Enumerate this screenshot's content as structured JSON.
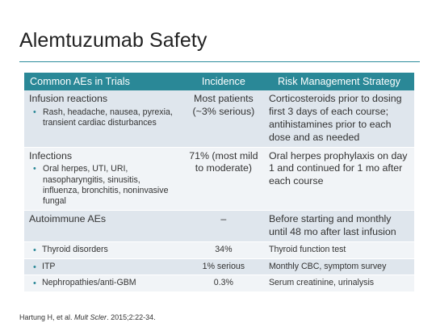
{
  "title": "Alemtuzumab Safety",
  "table": {
    "headers": [
      "Common AEs in Trials",
      "Incidence",
      "Risk Management Strategy"
    ],
    "rows": [
      {
        "ae": "Infusion reactions",
        "sub": "Rash, headache, nausea, pyrexia, transient cardiac disturbances",
        "incidence": "Most patients (~3% serious)",
        "strategy": "Corticosteroids prior to dosing first 3 days of each course; antihistamines prior to each dose and as needed"
      },
      {
        "ae": "Infections",
        "sub": "Oral herpes, UTI, URI, nasopharyngitis, sinusitis, influenza, bronchitis, noninvasive fungal",
        "incidence": "71% (most mild to moderate)",
        "strategy": "Oral herpes prophylaxis on day 1 and continued for 1 mo after each course"
      },
      {
        "ae": "Autoimmune AEs",
        "incidence": "–",
        "strategy": "Before starting and monthly until 48 mo after last infusion"
      },
      {
        "ae": "Thyroid disorders",
        "incidence": "34%",
        "strategy": "Thyroid function test"
      },
      {
        "ae": "ITP",
        "incidence": "1% serious",
        "strategy": "Monthly CBC, symptom survey"
      },
      {
        "ae": "Nephropathies/anti-GBM",
        "incidence": "0.3%",
        "strategy": "Serum creatinine, urinalysis"
      }
    ]
  },
  "citation": {
    "authors": "Hartung H, et al.",
    "journal": "Mult Scler",
    "rest": ". 2015;2:22-34."
  },
  "colors": {
    "header_bg": "#2a8897",
    "row_dark": "#dfe6ed",
    "row_light": "#f1f4f7",
    "accent": "#2b8c9c"
  }
}
